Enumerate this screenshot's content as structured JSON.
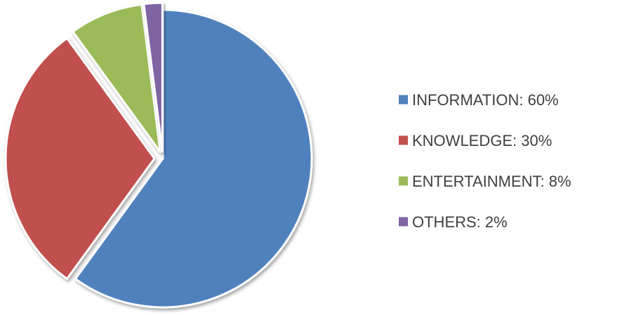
{
  "chart_data": {
    "type": "pie",
    "title": "",
    "slices": [
      {
        "label": "INFORMATION",
        "value": 60,
        "color": "#4f81bd"
      },
      {
        "label": "KNOWLEDGE",
        "value": 30,
        "color": "#c0504d"
      },
      {
        "label": "ENTERTAINMENT",
        "value": 8,
        "color": "#9bbb59"
      },
      {
        "label": "OTHERS",
        "value": 2,
        "color": "#8064a2"
      }
    ],
    "legend": {
      "placement": "right",
      "entries": [
        "INFORMATION: 60%",
        "KNOWLEDGE: 30%",
        "ENTERTAINMENT: 8%",
        "OTHERS: 2%"
      ]
    }
  }
}
